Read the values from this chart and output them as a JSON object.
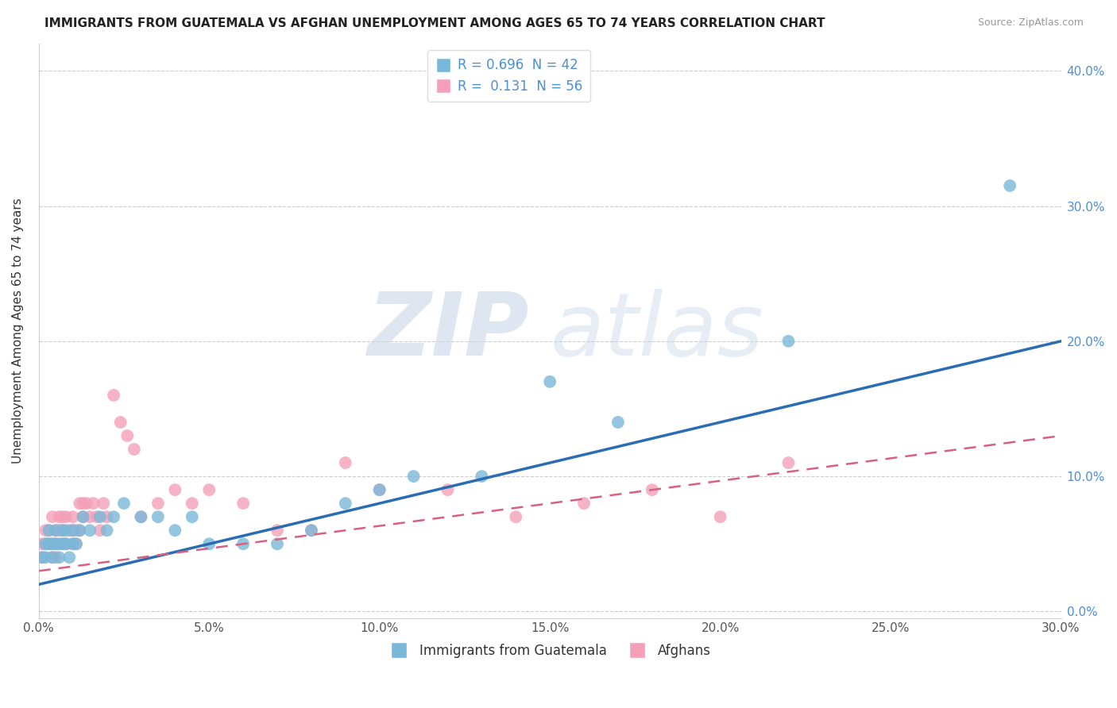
{
  "title": "IMMIGRANTS FROM GUATEMALA VS AFGHAN UNEMPLOYMENT AMONG AGES 65 TO 74 YEARS CORRELATION CHART",
  "source": "Source: ZipAtlas.com",
  "ylabel": "Unemployment Among Ages 65 to 74 years",
  "xlim": [
    0.0,
    0.3
  ],
  "ylim": [
    -0.005,
    0.42
  ],
  "xticks": [
    0.0,
    0.05,
    0.1,
    0.15,
    0.2,
    0.25,
    0.3
  ],
  "yticks": [
    0.0,
    0.1,
    0.2,
    0.3,
    0.4
  ],
  "xtick_labels": [
    "0.0%",
    "5.0%",
    "10.0%",
    "15.0%",
    "20.0%",
    "25.0%",
    "30.0%"
  ],
  "ytick_labels": [
    "0.0%",
    "10.0%",
    "20.0%",
    "30.0%",
    "40.0%"
  ],
  "guatemala_color": "#7ab8d9",
  "afghan_color": "#f4a0b8",
  "guatemala_line_color": "#2a6db5",
  "afghan_line_color": "#d96080",
  "R_guatemala": 0.696,
  "N_guatemala": 42,
  "R_afghan": 0.131,
  "N_afghan": 56,
  "guat_line_start_y": 0.02,
  "guat_line_end_y": 0.2,
  "afgh_line_start_y": 0.03,
  "afgh_line_end_y": 0.13,
  "guatemala_points_x": [
    0.001,
    0.002,
    0.002,
    0.003,
    0.003,
    0.004,
    0.004,
    0.005,
    0.005,
    0.006,
    0.006,
    0.007,
    0.007,
    0.008,
    0.008,
    0.009,
    0.01,
    0.01,
    0.011,
    0.012,
    0.013,
    0.015,
    0.018,
    0.02,
    0.022,
    0.025,
    0.03,
    0.035,
    0.04,
    0.045,
    0.05,
    0.06,
    0.07,
    0.08,
    0.09,
    0.1,
    0.11,
    0.13,
    0.15,
    0.17,
    0.22,
    0.285
  ],
  "guatemala_points_y": [
    0.04,
    0.05,
    0.04,
    0.05,
    0.06,
    0.05,
    0.04,
    0.06,
    0.05,
    0.04,
    0.05,
    0.06,
    0.05,
    0.06,
    0.05,
    0.04,
    0.05,
    0.06,
    0.05,
    0.06,
    0.07,
    0.06,
    0.07,
    0.06,
    0.07,
    0.08,
    0.07,
    0.07,
    0.06,
    0.07,
    0.05,
    0.05,
    0.05,
    0.06,
    0.08,
    0.09,
    0.1,
    0.1,
    0.17,
    0.14,
    0.2,
    0.315
  ],
  "afghan_points_x": [
    0.001,
    0.001,
    0.002,
    0.002,
    0.003,
    0.003,
    0.004,
    0.004,
    0.004,
    0.005,
    0.005,
    0.005,
    0.006,
    0.006,
    0.007,
    0.007,
    0.007,
    0.008,
    0.008,
    0.009,
    0.01,
    0.01,
    0.01,
    0.011,
    0.011,
    0.012,
    0.012,
    0.013,
    0.013,
    0.014,
    0.015,
    0.016,
    0.017,
    0.018,
    0.019,
    0.02,
    0.022,
    0.024,
    0.026,
    0.028,
    0.03,
    0.035,
    0.04,
    0.045,
    0.05,
    0.06,
    0.07,
    0.08,
    0.09,
    0.1,
    0.12,
    0.14,
    0.16,
    0.18,
    0.2,
    0.22
  ],
  "afghan_points_y": [
    0.05,
    0.04,
    0.06,
    0.05,
    0.05,
    0.06,
    0.04,
    0.05,
    0.07,
    0.06,
    0.04,
    0.05,
    0.07,
    0.06,
    0.05,
    0.07,
    0.06,
    0.05,
    0.07,
    0.06,
    0.05,
    0.06,
    0.07,
    0.05,
    0.06,
    0.06,
    0.08,
    0.07,
    0.08,
    0.08,
    0.07,
    0.08,
    0.07,
    0.06,
    0.08,
    0.07,
    0.16,
    0.14,
    0.13,
    0.12,
    0.07,
    0.08,
    0.09,
    0.08,
    0.09,
    0.08,
    0.06,
    0.06,
    0.11,
    0.09,
    0.09,
    0.07,
    0.08,
    0.09,
    0.07,
    0.11
  ]
}
